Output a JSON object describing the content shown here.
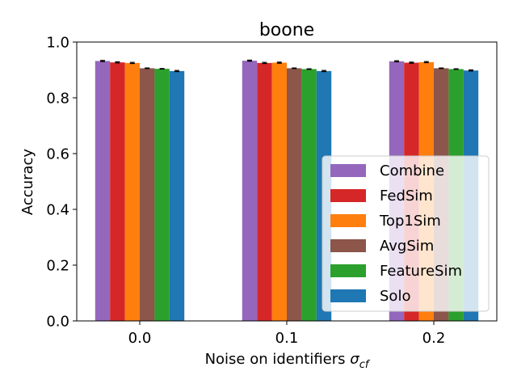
{
  "chart_data": {
    "type": "bar",
    "title": "boone",
    "xlabel_main": "Noise on identifiers ",
    "xlabel_symbol": "σ",
    "xlabel_subscript": "cf",
    "ylabel": "Accuracy",
    "categories": [
      "0.0",
      "0.1",
      "0.2"
    ],
    "ylim": [
      0.0,
      1.0
    ],
    "yticks": [
      "0.0",
      "0.2",
      "0.4",
      "0.6",
      "0.8",
      "1.0"
    ],
    "grid": false,
    "legend_position": "lower right",
    "error_bars": true,
    "series": [
      {
        "name": "Combine",
        "color": "#9467bd",
        "values": [
          0.932,
          0.933,
          0.931
        ],
        "errors": [
          0.002,
          0.002,
          0.002
        ]
      },
      {
        "name": "FedSim",
        "color": "#d62728",
        "values": [
          0.927,
          0.925,
          0.926
        ],
        "errors": [
          0.002,
          0.002,
          0.002
        ]
      },
      {
        "name": "Top1Sim",
        "color": "#ff7f0e",
        "values": [
          0.925,
          0.926,
          0.928
        ],
        "errors": [
          0.002,
          0.002,
          0.002
        ]
      },
      {
        "name": "AvgSim",
        "color": "#8c564b",
        "values": [
          0.906,
          0.906,
          0.906
        ],
        "errors": [
          0.001,
          0.001,
          0.001
        ]
      },
      {
        "name": "FeatureSim",
        "color": "#2ca02c",
        "values": [
          0.904,
          0.903,
          0.903
        ],
        "errors": [
          0.001,
          0.001,
          0.001
        ]
      },
      {
        "name": "Solo",
        "color": "#1f77b4",
        "values": [
          0.896,
          0.896,
          0.898
        ],
        "errors": [
          0.002,
          0.002,
          0.002
        ]
      }
    ]
  }
}
